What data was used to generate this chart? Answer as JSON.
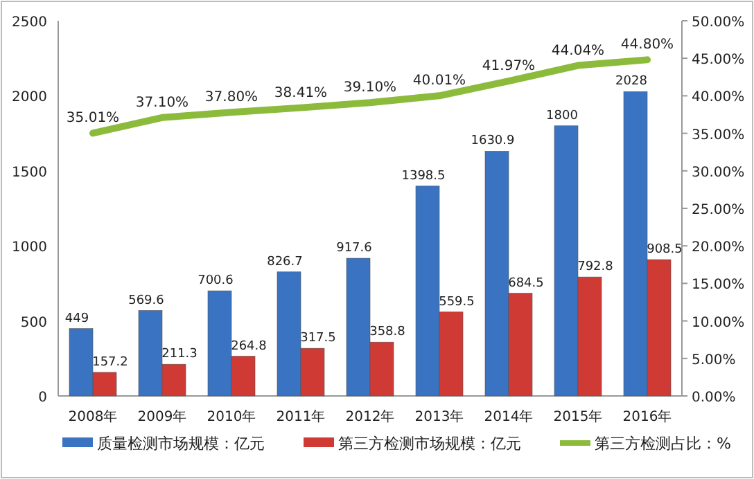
{
  "chart_data": {
    "type": "bar",
    "categories": [
      "2008年",
      "2009年",
      "2010年",
      "2011年",
      "2012年",
      "2013年",
      "2014年",
      "2015年",
      "2016年"
    ],
    "series": [
      {
        "name": "质量检测市场规模：亿元",
        "color": "#3a73c2",
        "values": [
          449,
          569.6,
          700.6,
          826.7,
          917.6,
          1398.5,
          1630.9,
          1800,
          2028
        ]
      },
      {
        "name": "第三方检测市场规模：亿元",
        "color": "#cf3a35",
        "values": [
          157.2,
          211.3,
          264.8,
          317.5,
          358.8,
          559.5,
          684.5,
          792.8,
          908.5
        ]
      },
      {
        "name": "第三方检测占比：%",
        "type": "line",
        "axis": "y2",
        "color": "#8cbb3c",
        "values": [
          35.01,
          37.1,
          37.8,
          38.41,
          39.1,
          40.01,
          41.97,
          44.04,
          44.8
        ],
        "value_labels": [
          "35.01%",
          "37.10%",
          "37.80%",
          "38.41%",
          "39.10%",
          "40.01%",
          "41.97%",
          "44.04%",
          "44.80%"
        ]
      }
    ],
    "data_labels": true,
    "ylim": [
      0,
      2500
    ],
    "yticks": [
      0,
      500,
      1000,
      1500,
      2000,
      2500
    ],
    "y2lim": [
      0,
      50
    ],
    "y2ticks": [
      {
        "value": 0,
        "label": "0.00%"
      },
      {
        "value": 5,
        "label": "5.00%"
      },
      {
        "value": 10,
        "label": "10.00%"
      },
      {
        "value": 15,
        "label": "15.00%"
      },
      {
        "value": 20,
        "label": "20.00%"
      },
      {
        "value": 25,
        "label": "25.00%"
      },
      {
        "value": 30,
        "label": "30.00%"
      },
      {
        "value": 35,
        "label": "35.00%"
      },
      {
        "value": 40,
        "label": "40.00%"
      },
      {
        "value": 45,
        "label": "45.00%"
      },
      {
        "value": 50,
        "label": "50.00%"
      }
    ],
    "legend": "bottom"
  }
}
